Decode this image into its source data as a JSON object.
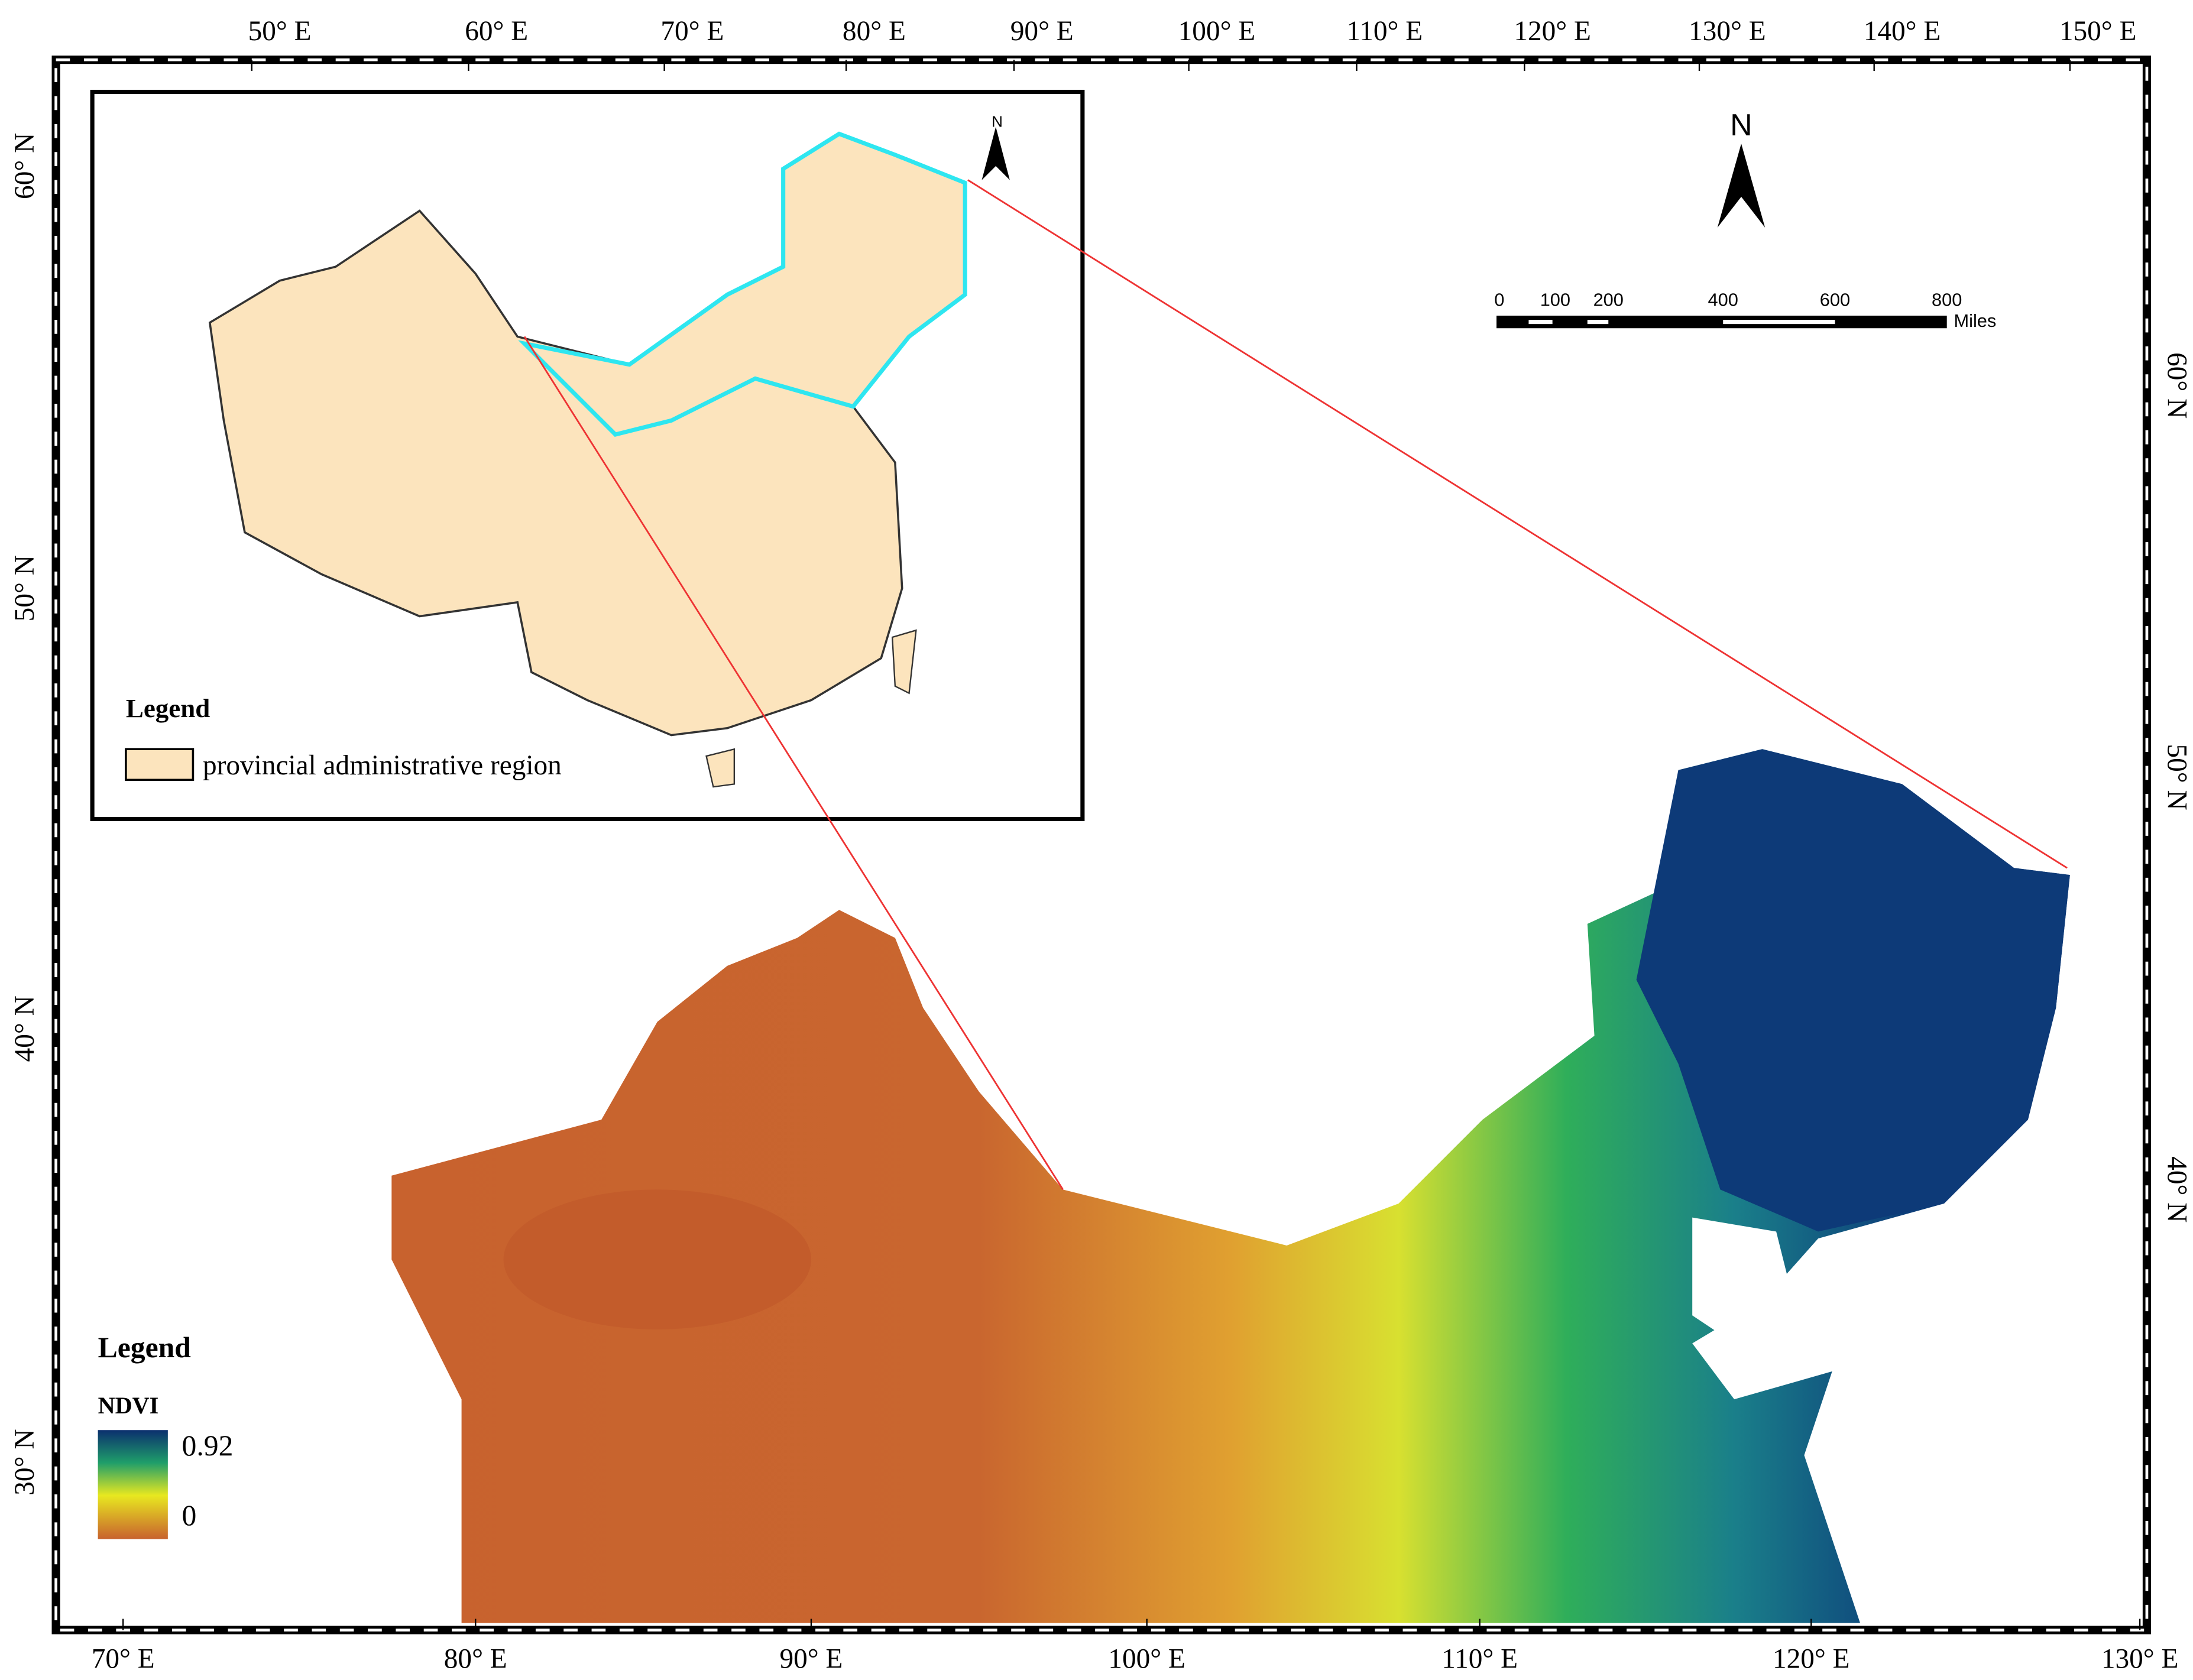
{
  "map": {
    "top_axis_labels": [
      "50° E",
      "60° E",
      "70° E",
      "80° E",
      "90° E",
      "100° E",
      "110° E",
      "120° E",
      "130° E",
      "140° E",
      "150° E"
    ],
    "bottom_axis_labels": [
      "70° E",
      "80° E",
      "90° E",
      "100° E",
      "110° E",
      "120° E",
      "130° E"
    ],
    "left_axis_labels": [
      "60° N",
      "50° N",
      "40° N",
      "30° N"
    ],
    "right_axis_labels": [
      "60° N",
      "50° N",
      "40° N"
    ],
    "inset": {
      "north": "N",
      "legend_title": "Legend",
      "legend_item": "provincial administrative region"
    },
    "north_arrow": "N",
    "scale_bar": {
      "ticks": [
        "0",
        "100",
        "200",
        "400",
        "600",
        "800"
      ],
      "unit": "Miles"
    },
    "legend": {
      "title": "Legend",
      "variable": "NDVI",
      "max": "0.92",
      "min": "0"
    }
  }
}
